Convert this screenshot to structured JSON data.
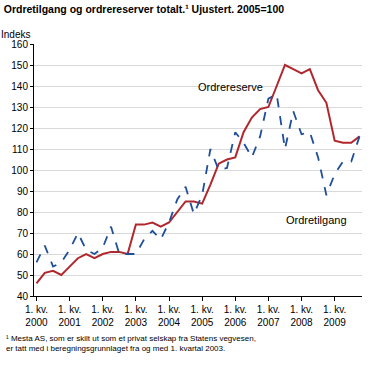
{
  "chart_data": {
    "type": "line",
    "title": "Ordretilgang og ordrereserver totalt.¹ Ujustert. 2005=100",
    "y_label": "Indeks",
    "footnote": "¹ Mesta AS, som er skilt ut som et privat selskap fra Statens vegvesen, er tatt med i beregningsgrunnlaget fra og med 1. kvartal 2003.",
    "categories": [
      "1. kv. 2000",
      null,
      null,
      null,
      "1. kv. 2001",
      null,
      null,
      null,
      "1. kv. 2002",
      null,
      null,
      null,
      "1. kv. 2003",
      null,
      null,
      null,
      "1. kv. 2004",
      null,
      null,
      null,
      "1. kv. 2005",
      null,
      null,
      null,
      "1. kv. 2006",
      null,
      null,
      null,
      "1. kv. 2007",
      null,
      null,
      null,
      "1. kv. 2008",
      null,
      null,
      null,
      "1. kv. 2009",
      null,
      null,
      null
    ],
    "series": [
      {
        "name": "Ordrereserve",
        "color": "#b0282e",
        "line_style": "solid",
        "values": [
          46,
          51,
          52,
          50,
          54,
          58,
          60,
          58,
          60,
          61,
          61,
          60,
          74,
          74,
          75,
          73,
          75,
          80,
          85,
          85,
          84,
          93,
          103,
          105,
          106,
          118,
          125,
          129,
          130,
          140,
          150,
          148,
          146,
          148,
          138,
          132,
          114,
          113,
          113,
          116
        ]
      },
      {
        "name": "Ordretilgang",
        "color": "#1f4e9a",
        "line_style": "dash",
        "values": [
          56,
          64,
          54,
          56,
          62,
          70,
          62,
          60,
          63,
          73,
          60,
          60,
          60,
          67,
          71,
          67,
          75,
          86,
          92,
          79,
          88,
          110,
          100,
          101,
          118,
          113,
          106,
          116,
          134,
          136,
          110,
          128,
          117,
          118,
          106,
          88,
          98,
          104,
          104,
          116
        ]
      }
    ],
    "ylim": [
      40,
      160
    ],
    "yticks": [
      40,
      50,
      60,
      70,
      80,
      90,
      100,
      110,
      120,
      130,
      140,
      150,
      160
    ],
    "grid": true
  }
}
